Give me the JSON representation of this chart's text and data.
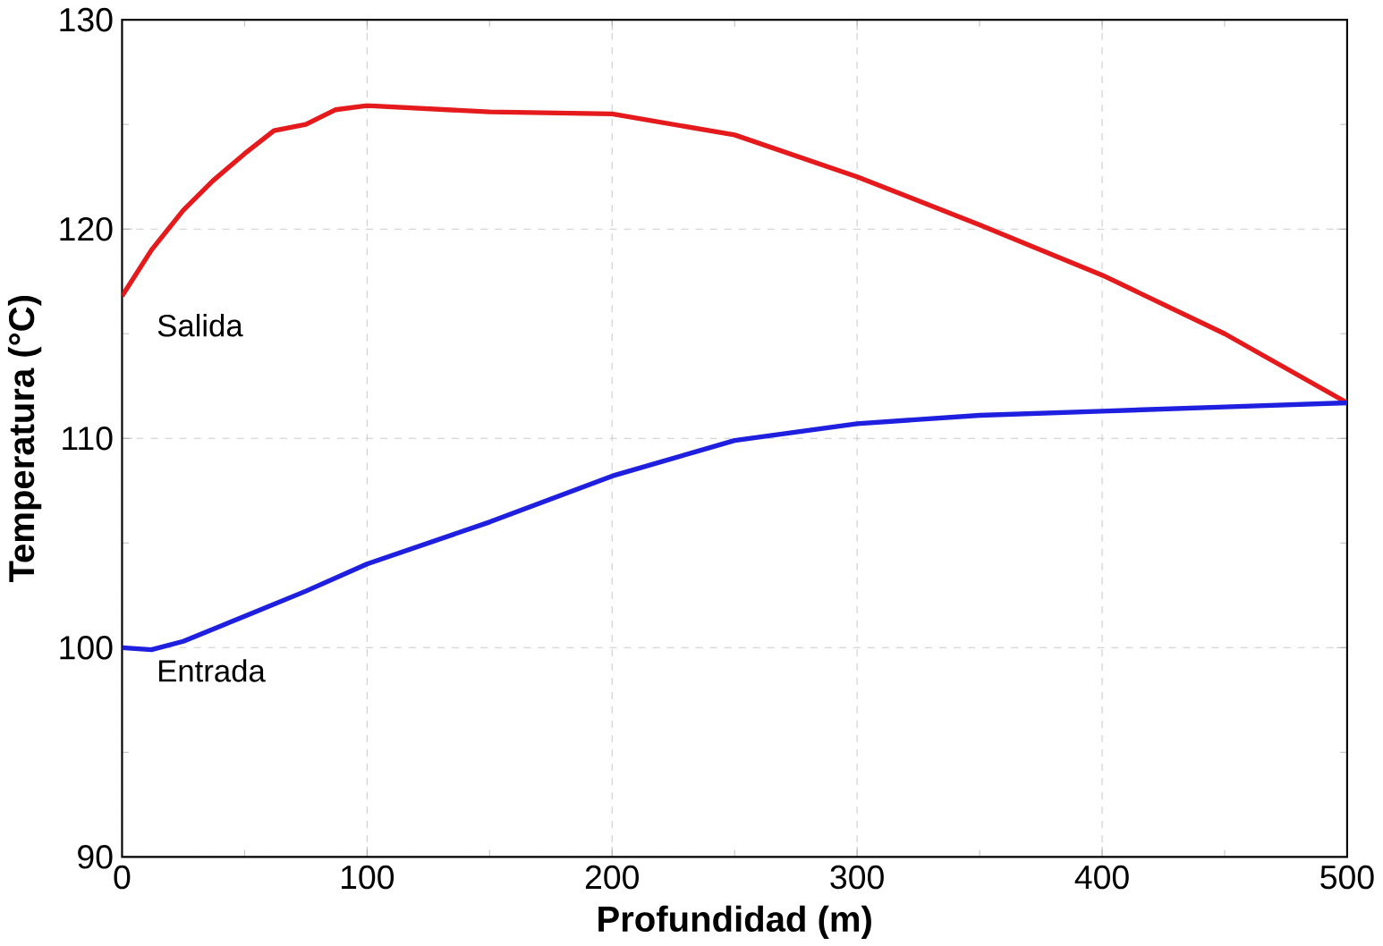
{
  "chart_data": {
    "type": "line",
    "xlabel": "Profundidad (m)",
    "ylabel": "Temperatura (°C)",
    "xlim": [
      0,
      500
    ],
    "ylim": [
      90,
      130
    ],
    "xticks": [
      0,
      100,
      200,
      300,
      400,
      500
    ],
    "yticks": [
      90,
      100,
      110,
      120,
      130
    ],
    "grid": true,
    "series": [
      {
        "name": "Salida",
        "color": "#e41a1c",
        "x": [
          0,
          12,
          25,
          37,
          50,
          62,
          75,
          87,
          100,
          150,
          200,
          250,
          300,
          350,
          400,
          450,
          500
        ],
        "values": [
          116.8,
          119,
          120.9,
          122.3,
          123.6,
          124.7,
          125,
          125.7,
          125.9,
          125.6,
          125.5,
          124.5,
          122.5,
          120.2,
          117.8,
          115,
          111.7
        ]
      },
      {
        "name": "Entrada",
        "color": "#1f1fe0",
        "x": [
          0,
          12,
          25,
          50,
          75,
          100,
          150,
          200,
          250,
          300,
          350,
          400,
          450,
          500
        ],
        "values": [
          100,
          99.9,
          100.3,
          101.5,
          102.7,
          104,
          106,
          108.2,
          109.9,
          110.7,
          111.1,
          111.3,
          111.5,
          111.7
        ]
      }
    ]
  }
}
